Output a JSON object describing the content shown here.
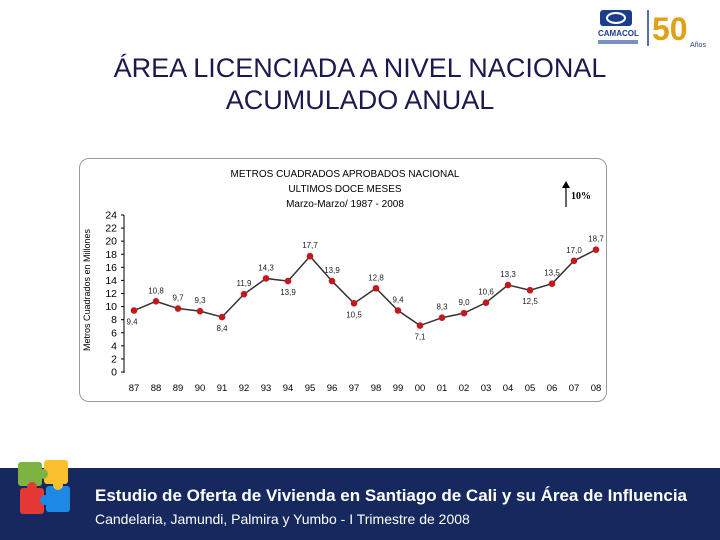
{
  "page": {
    "title_line1": "ÁREA LICENCIADA A NIVEL NACIONAL",
    "title_line2": "ACUMULADO ANUAL"
  },
  "logo": {
    "text": "CAMACOL",
    "anniversary": "50",
    "anniversary_label": "Años",
    "color": "#1d3c8c",
    "accent": "#e0a017"
  },
  "banner": {
    "line1": "Estudio de Oferta de Vivienda en Santiago de Cali y su Área de Influencia",
    "line2": "Candelaria, Jamundi, Palmira y Yumbo - I Trimestre de 2008",
    "background": "#15295e"
  },
  "chart_data": {
    "type": "line",
    "title_lines": [
      "METROS CUADRADOS APROBADOS NACIONAL",
      "ULTIMOS DOCE MESES",
      "Marzo-Marzo/ 1987 - 2008"
    ],
    "ylabel": "Metros Cuadrados en Millones",
    "xlabel": "",
    "ylim": [
      0,
      24
    ],
    "yticks": [
      "0",
      "2",
      "4",
      "6",
      "8",
      "10",
      "12",
      "14",
      "16",
      "18",
      "20",
      "22",
      "24"
    ],
    "categories": [
      "87",
      "88",
      "89",
      "90",
      "91",
      "92",
      "93",
      "94",
      "95",
      "96",
      "97",
      "98",
      "99",
      "00",
      "01",
      "02",
      "03",
      "04",
      "05",
      "06",
      "07",
      "08"
    ],
    "values": [
      9.4,
      10.8,
      9.7,
      9.3,
      8.4,
      11.9,
      14.3,
      13.9,
      17.7,
      13.9,
      10.5,
      12.8,
      9.4,
      7.1,
      8.3,
      9.0,
      10.6,
      13.3,
      12.5,
      13.5,
      17.0,
      18.7
    ],
    "data_labels": [
      "9,4",
      "10,8",
      "9,7",
      "9,3",
      "8,4",
      "11,9",
      "14,3",
      "13,9",
      "17,7",
      "13,9",
      "10,5",
      "12,8",
      "9,4",
      "7,1",
      "8,3",
      "9,0",
      "10,6",
      "13,3",
      "12,5",
      "13,5",
      "17,0",
      "18,7"
    ],
    "annotation": "10%",
    "line_color": "#333333",
    "marker_color": "#c21a1a",
    "grid": false
  }
}
